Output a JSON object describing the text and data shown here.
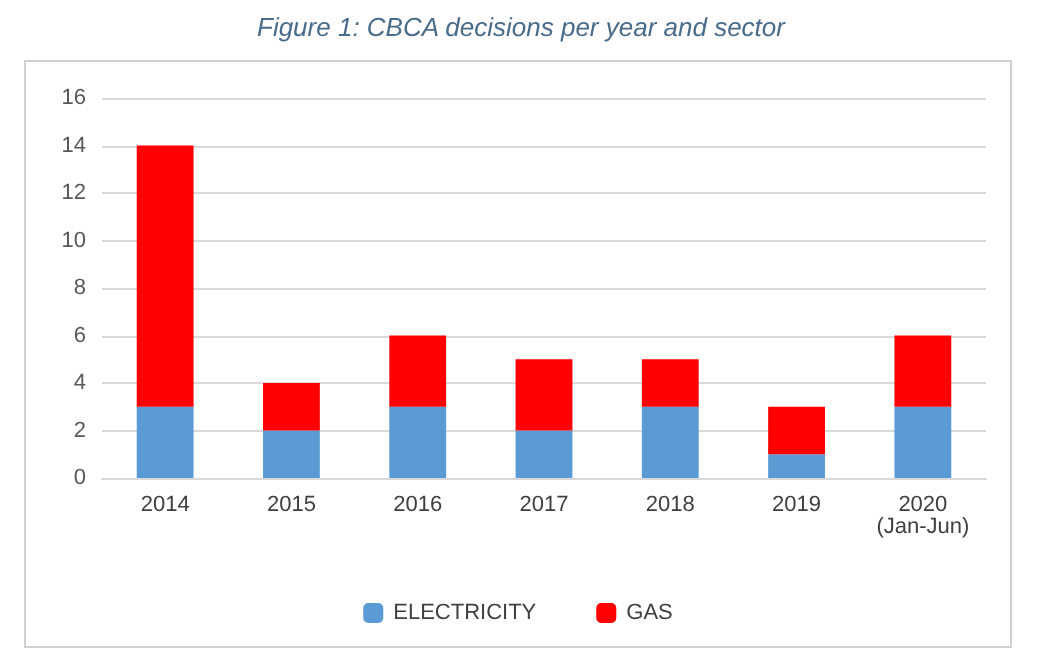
{
  "chart_data": {
    "type": "bar",
    "title": "Figure 1: CBCA decisions per year and sector",
    "categories": [
      "2014",
      "2015",
      "2016",
      "2017",
      "2018",
      "2019",
      "2020\n(Jan-Jun)"
    ],
    "stacked": true,
    "series": [
      {
        "name": "ELECTRICITY",
        "color": "#5b9bd5",
        "values": [
          3,
          2,
          3,
          2,
          3,
          1,
          3
        ]
      },
      {
        "name": "GAS",
        "color": "#ff0000",
        "values": [
          11,
          2,
          3,
          3,
          2,
          2,
          3
        ]
      }
    ],
    "ylim": [
      0,
      16
    ],
    "yticks": [
      0,
      2,
      4,
      6,
      8,
      10,
      12,
      14,
      16
    ],
    "grid": "y",
    "legend": "bottom"
  }
}
